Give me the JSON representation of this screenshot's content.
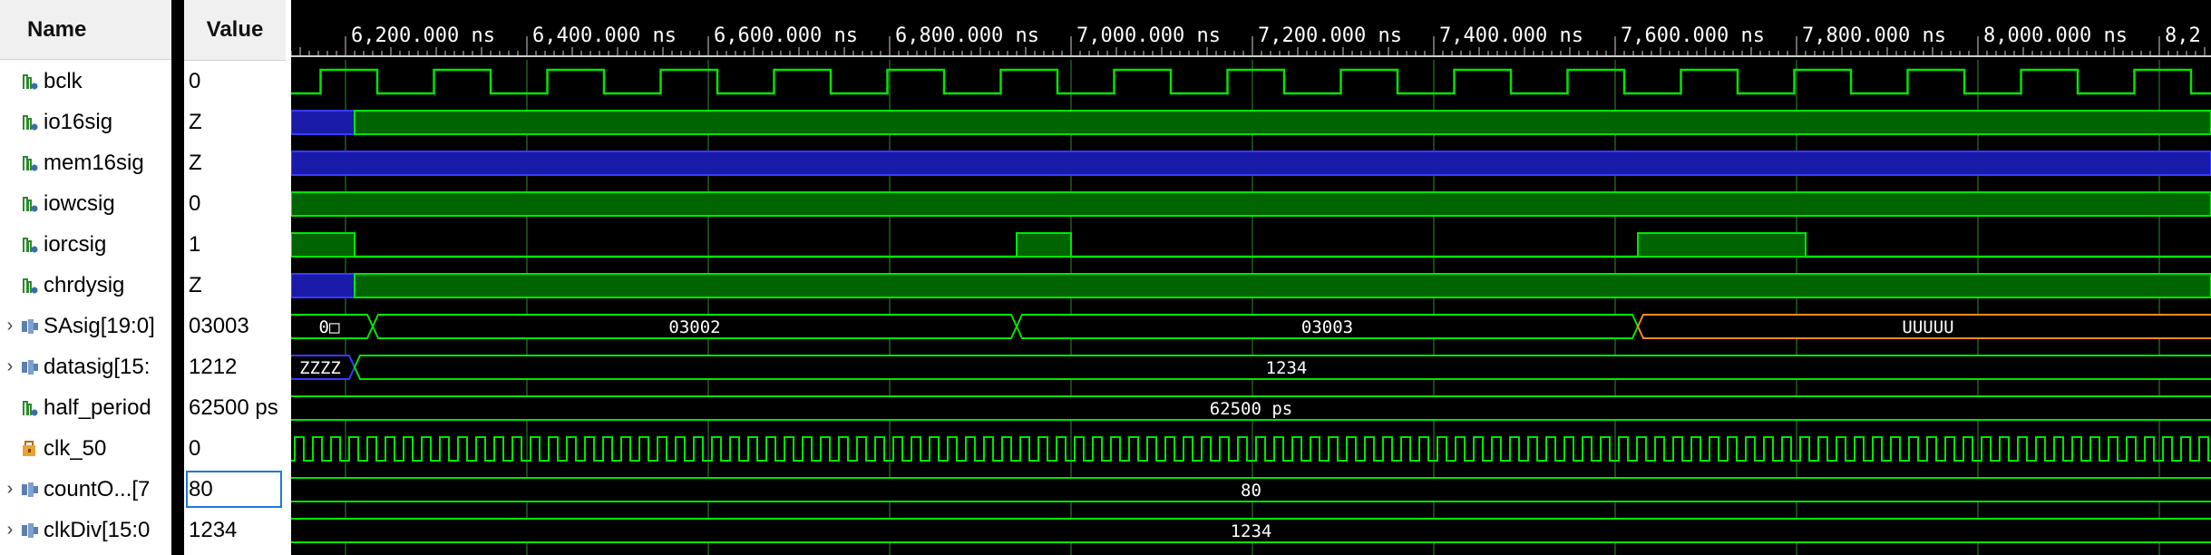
{
  "columns": {
    "name": "Name",
    "value": "Value"
  },
  "colors": {
    "signal": "#00e600",
    "grid": "#5cff5c",
    "highZ": "#1a1aa8",
    "undefined": "#ff8c1a",
    "fill": "#006400"
  },
  "time_axis": {
    "unit": "ns",
    "labels": [
      "6,200.000 ns",
      "6,400.000 ns",
      "6,600.000 ns",
      "6,800.000 ns",
      "7,000.000 ns",
      "7,200.000 ns",
      "7,400.000 ns",
      "7,600.000 ns",
      "7,800.000 ns",
      "8,000.000 ns",
      "8,2"
    ]
  },
  "signals": [
    {
      "name": "bclk",
      "value": "0",
      "icon": "bit-signal-icon",
      "expandable": false
    },
    {
      "name": "io16sig",
      "value": "Z",
      "icon": "bit-signal-icon",
      "expandable": false
    },
    {
      "name": "mem16sig",
      "value": "Z",
      "icon": "bit-signal-icon",
      "expandable": false
    },
    {
      "name": "iowcsig",
      "value": "0",
      "icon": "bit-signal-icon",
      "expandable": false
    },
    {
      "name": "iorcsig",
      "value": "1",
      "icon": "bit-signal-icon",
      "expandable": false
    },
    {
      "name": "chrdysig",
      "value": "Z",
      "icon": "bit-signal-icon",
      "expandable": false
    },
    {
      "name": "SAsig[19:0]",
      "value": "03003",
      "icon": "bus-signal-icon",
      "expandable": true
    },
    {
      "name": "datasig[15:",
      "value": "1212",
      "icon": "bus-signal-icon",
      "expandable": true
    },
    {
      "name": "half_period",
      "value": "62500 ps",
      "icon": "bit-signal-icon",
      "expandable": false
    },
    {
      "name": "clk_50",
      "value": "0",
      "icon": "constant-signal-icon",
      "expandable": false
    },
    {
      "name": "countO...[7",
      "value": "80",
      "icon": "bus-signal-icon",
      "expandable": true,
      "selected": true
    },
    {
      "name": "clkDiv[15:0",
      "value": "1234",
      "icon": "bus-signal-icon",
      "expandable": true
    }
  ],
  "bus_labels": {
    "SAsig": [
      "0□",
      "03002",
      "03003",
      "UUUUU"
    ],
    "datasig": [
      "ZZZZ",
      "1234"
    ],
    "half_period": [
      "62500 ps"
    ],
    "countO": [
      "80"
    ],
    "clkDiv": [
      "1234"
    ]
  }
}
